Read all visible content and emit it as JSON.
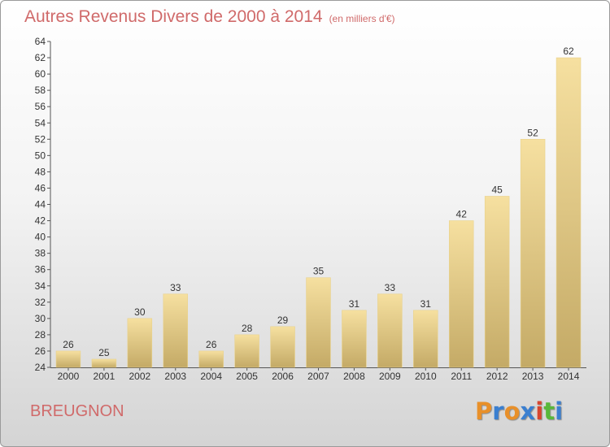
{
  "chart_data": {
    "type": "bar",
    "title": "Autres Revenus Divers de 2000 à 2014",
    "unit": "(en milliers d'€)",
    "categories": [
      "2000",
      "2001",
      "2002",
      "2003",
      "2004",
      "2005",
      "2006",
      "2007",
      "2008",
      "2009",
      "2010",
      "2011",
      "2012",
      "2013",
      "2014"
    ],
    "values": [
      26,
      25,
      30,
      33,
      26,
      28,
      29,
      35,
      31,
      33,
      31,
      42,
      45,
      52,
      62
    ],
    "ylim": [
      24,
      64
    ],
    "yticks": [
      24,
      26,
      28,
      30,
      32,
      34,
      36,
      38,
      40,
      42,
      44,
      46,
      48,
      50,
      52,
      54,
      56,
      58,
      60,
      62,
      64
    ],
    "grid": false,
    "bar_color": "#f2d78f"
  },
  "commune": "BREUGNON",
  "logo": {
    "letters": [
      "P",
      "r",
      "o",
      "x",
      "i",
      "t",
      "i"
    ],
    "colors": [
      "#e8902a",
      "#3a7fd0",
      "#e8902a",
      "#3a7fd0",
      "#d8452e",
      "#58b83a",
      "#3a7fd0"
    ]
  }
}
